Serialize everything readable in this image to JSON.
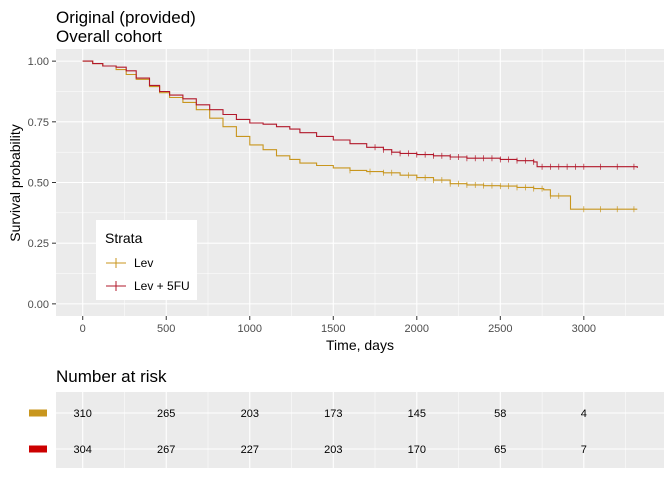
{
  "title_line1": "Original (provided)",
  "title_line2": "Overall cohort",
  "chart_data": {
    "type": "line",
    "subtype": "kaplan-meier step curves with censor marks",
    "xlabel": "Time, days",
    "ylabel": "Survival probability",
    "xlim": [
      -160,
      3480
    ],
    "ylim": [
      -0.05,
      1.05
    ],
    "x_ticks": [
      0,
      500,
      1000,
      1500,
      2000,
      2500,
      3000
    ],
    "x_tick_labels": [
      "0",
      "500",
      "1000",
      "1500",
      "2000",
      "2500",
      "3000"
    ],
    "y_ticks": [
      0,
      0.25,
      0.5,
      0.75,
      1.0
    ],
    "y_tick_labels": [
      "0.00",
      "0.25",
      "0.50",
      "0.75",
      "1.00"
    ],
    "grid": true,
    "panel_background": "#ebebeb",
    "legend": {
      "title": "Strata",
      "placement": "bottom-left inside panel",
      "items": [
        "Lev",
        "Lev + 5FU"
      ]
    },
    "series": [
      {
        "name": "Lev",
        "color": "#c8961e",
        "x": [
          0,
          60,
          120,
          200,
          260,
          320,
          400,
          460,
          520,
          600,
          680,
          760,
          840,
          920,
          1000,
          1080,
          1160,
          1240,
          1300,
          1400,
          1500,
          1600,
          1700,
          1800,
          1900,
          2000,
          2100,
          2200,
          2300,
          2400,
          2500,
          2600,
          2700,
          2760,
          2800,
          2860,
          2900,
          2920,
          3000,
          3100,
          3200,
          3320
        ],
        "y": [
          1.0,
          0.99,
          0.98,
          0.965,
          0.945,
          0.925,
          0.895,
          0.87,
          0.85,
          0.83,
          0.8,
          0.765,
          0.73,
          0.69,
          0.655,
          0.635,
          0.61,
          0.595,
          0.58,
          0.57,
          0.56,
          0.55,
          0.545,
          0.54,
          0.53,
          0.52,
          0.51,
          0.495,
          0.49,
          0.487,
          0.485,
          0.48,
          0.475,
          0.47,
          0.445,
          0.445,
          0.445,
          0.39,
          0.39,
          0.39,
          0.39,
          0.39
        ],
        "censor_x": [
          1600,
          1720,
          1800,
          1850,
          1950,
          2000,
          2050,
          2100,
          2150,
          2200,
          2250,
          2300,
          2350,
          2400,
          2450,
          2500,
          2550,
          2600,
          2650,
          2700,
          2750,
          2800,
          2850,
          3000,
          3100,
          3200,
          3300
        ]
      },
      {
        "name": "Lev + 5FU",
        "color": "#b2182b",
        "x": [
          0,
          60,
          120,
          200,
          260,
          320,
          400,
          460,
          520,
          600,
          680,
          760,
          840,
          920,
          1000,
          1080,
          1160,
          1240,
          1300,
          1400,
          1500,
          1600,
          1700,
          1800,
          1850,
          1900,
          2000,
          2100,
          2200,
          2300,
          2400,
          2500,
          2600,
          2700,
          2720,
          2800,
          2900,
          3000,
          3100,
          3200,
          3320
        ],
        "y": [
          1.0,
          0.99,
          0.98,
          0.975,
          0.96,
          0.93,
          0.9,
          0.875,
          0.86,
          0.845,
          0.82,
          0.8,
          0.78,
          0.76,
          0.745,
          0.74,
          0.73,
          0.72,
          0.705,
          0.69,
          0.675,
          0.66,
          0.645,
          0.635,
          0.625,
          0.62,
          0.615,
          0.61,
          0.605,
          0.6,
          0.6,
          0.595,
          0.59,
          0.585,
          0.565,
          0.565,
          0.565,
          0.565,
          0.565,
          0.565,
          0.56
        ],
        "censor_x": [
          1750,
          1800,
          1850,
          1900,
          1950,
          2000,
          2050,
          2100,
          2150,
          2200,
          2250,
          2300,
          2350,
          2400,
          2450,
          2500,
          2550,
          2600,
          2650,
          2700,
          2750,
          2800,
          2850,
          2900,
          2950,
          3000,
          3100,
          3200,
          3300
        ]
      }
    ]
  },
  "risk_table": {
    "title": "Number at risk",
    "times": [
      0,
      500,
      1000,
      1500,
      2000,
      2500,
      3000
    ],
    "rows": [
      {
        "name": "Lev",
        "color": "#c8961e",
        "values": [
          "310",
          "265",
          "203",
          "173",
          "145",
          "58",
          "4"
        ]
      },
      {
        "name": "Lev + 5FU",
        "color": "#cc0000",
        "values": [
          "304",
          "267",
          "227",
          "203",
          "170",
          "65",
          "7"
        ]
      }
    ]
  }
}
